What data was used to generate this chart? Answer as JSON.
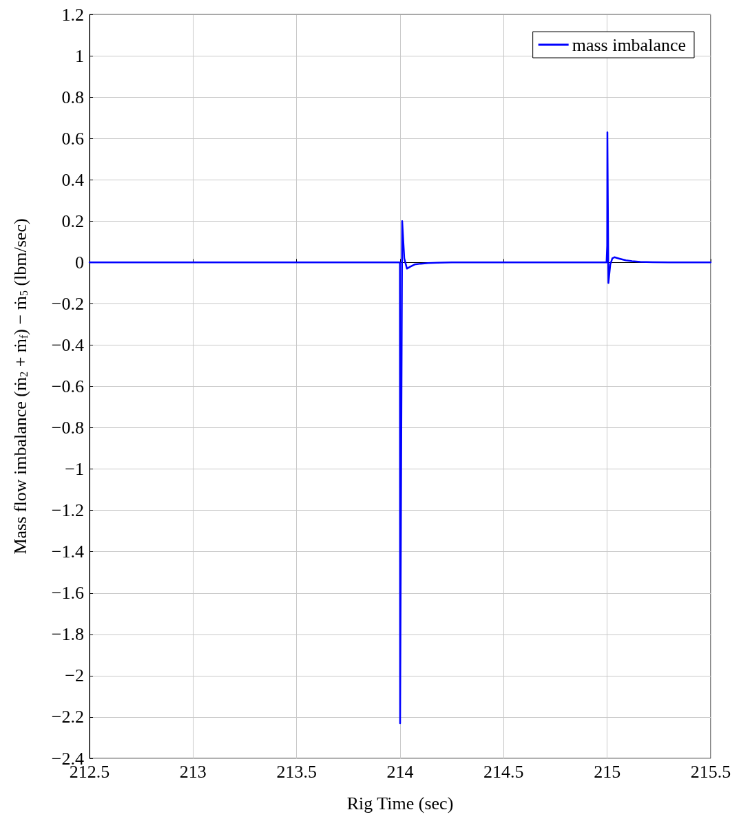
{
  "chart_data": {
    "type": "line",
    "xlabel": "Rig Time (sec)",
    "ylabel": "Mass flow imbalance (ṁ$_{2}$ + ṁ$_{f}$) − ṁ$_{5}$ (lbm/sec)",
    "series": [
      {
        "name": "mass imbalance",
        "color": "#0000ff",
        "x": [
          212.5,
          213.995,
          213.999,
          214.0,
          214.001,
          214.01,
          214.02,
          214.033,
          214.05,
          214.07,
          214.1,
          214.135,
          214.18,
          214.25,
          214.997,
          215.0,
          215.001,
          215.006,
          215.015,
          215.025,
          215.035,
          215.06,
          215.09,
          215.12,
          215.16,
          215.22,
          215.3,
          215.5
        ],
        "values": [
          0,
          0,
          0,
          -2.23,
          -2.23,
          0.2,
          0.02,
          -0.03,
          -0.02,
          -0.01,
          -0.006,
          -0.003,
          -0.001,
          0,
          0,
          0.08,
          0.63,
          -0.1,
          -0.01,
          0.02,
          0.025,
          0.018,
          0.01,
          0.006,
          0.003,
          0.001,
          0,
          0
        ]
      }
    ],
    "xlim": [
      212.5,
      215.5
    ],
    "xticks": [
      212.5,
      213,
      213.5,
      214,
      214.5,
      215,
      215.5
    ],
    "ylim": [
      -2.4,
      1.2
    ],
    "yticks": [
      -2.4,
      -2.2,
      -2,
      -1.8,
      -1.6,
      -1.4,
      -1.2,
      -1,
      -0.8,
      -0.6,
      -0.4,
      -0.2,
      0,
      0.2,
      0.4,
      0.6,
      0.8,
      1,
      1.2
    ],
    "grid": true,
    "legend": "top right",
    "marker": "none",
    "line_style": "solid"
  }
}
